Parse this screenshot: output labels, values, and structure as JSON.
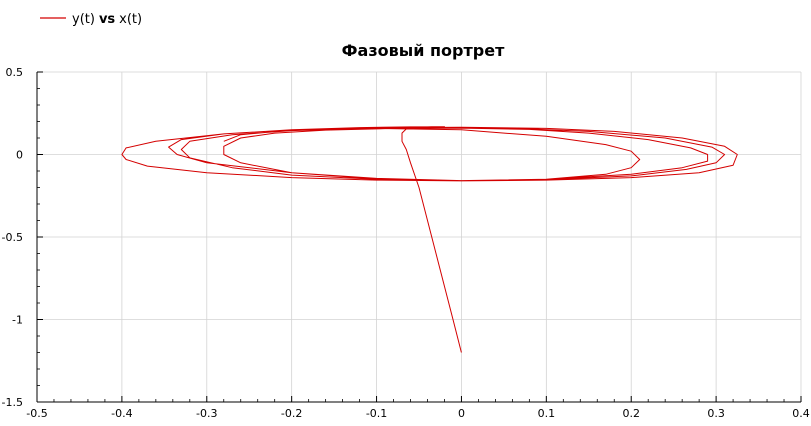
{
  "chart_data": {
    "type": "line",
    "title": "Фазовый портрет",
    "xlabel": "",
    "ylabel": "",
    "xlim": [
      -0.5,
      0.4
    ],
    "ylim": [
      -1.5,
      0.5
    ],
    "x_ticks": [
      -0.5,
      -0.4,
      -0.3,
      -0.2,
      -0.1,
      0,
      0.1,
      0.2,
      0.3,
      0.4
    ],
    "y_ticks": [
      -1.5,
      -1,
      -0.5,
      0,
      0.5
    ],
    "x_tick_labels": [
      "-0.5",
      "-0.4",
      "-0.3",
      "-0.2",
      "-0.1",
      "0",
      "0.1",
      "0.2",
      "0.3",
      "0.4"
    ],
    "y_tick_labels": [
      "-1.5",
      "-1",
      "-0.5",
      "0",
      "0.5"
    ],
    "grid": true,
    "legend_position": "top-left",
    "legend": {
      "y_part": "y(t)",
      "vs_part": "vs",
      "x_part": "x(t)"
    },
    "series": [
      {
        "color": "#d40000",
        "x": [
          0,
          -0.01,
          -0.02,
          -0.03,
          -0.04,
          -0.05,
          -0.06,
          -0.065,
          -0.07,
          -0.07,
          -0.065,
          -0.055,
          -0.035,
          -0.02,
          -0.06,
          -0.12,
          -0.2,
          -0.28,
          -0.36,
          -0.395,
          -0.4,
          -0.395,
          -0.37,
          -0.3,
          -0.2,
          -0.1,
          0,
          0.1,
          0.2,
          0.28,
          0.32,
          0.325,
          0.31,
          0.26,
          0.18,
          0.1,
          0,
          -0.1,
          -0.2,
          -0.28,
          -0.33,
          -0.345,
          -0.335,
          -0.3,
          -0.2,
          -0.1,
          0,
          0.1,
          0.2,
          0.265,
          0.3,
          0.31,
          0.295,
          0.24,
          0.15,
          0.06,
          -0.03,
          -0.12,
          -0.2,
          -0.27,
          -0.32,
          -0.33,
          -0.32,
          -0.27,
          -0.2,
          -0.1,
          0,
          0.1,
          0.2,
          0.26,
          0.29,
          0.29,
          0.27,
          0.22,
          0.15,
          0.08,
          0,
          -0.08,
          -0.16,
          -0.22,
          -0.26,
          -0.28,
          -0.28,
          -0.26,
          -0.2,
          -0.1,
          0,
          0.1,
          0.17,
          0.2,
          0.21,
          0.2,
          0.17,
          0.1,
          0,
          -0.1,
          -0.2,
          -0.26,
          -0.28
        ],
        "y": [
          -1.2,
          -1.0,
          -0.8,
          -0.6,
          -0.4,
          -0.2,
          -0.05,
          0.03,
          0.08,
          0.13,
          0.155,
          0.165,
          0.168,
          0.168,
          0.167,
          0.163,
          0.15,
          0.125,
          0.08,
          0.04,
          0.0,
          -0.03,
          -0.07,
          -0.11,
          -0.14,
          -0.155,
          -0.16,
          -0.155,
          -0.14,
          -0.11,
          -0.065,
          0.0,
          0.05,
          0.1,
          0.14,
          0.158,
          0.165,
          0.162,
          0.15,
          0.125,
          0.09,
          0.045,
          0.0,
          -0.05,
          -0.11,
          -0.145,
          -0.158,
          -0.152,
          -0.13,
          -0.09,
          -0.05,
          0.0,
          0.045,
          0.1,
          0.14,
          0.158,
          0.162,
          0.158,
          0.145,
          0.12,
          0.08,
          0.03,
          -0.02,
          -0.08,
          -0.125,
          -0.15,
          -0.158,
          -0.15,
          -0.12,
          -0.08,
          -0.04,
          0.0,
          0.04,
          0.09,
          0.13,
          0.152,
          0.16,
          0.158,
          0.148,
          0.13,
          0.1,
          0.05,
          0.0,
          -0.05,
          -0.11,
          -0.148,
          -0.158,
          -0.15,
          -0.12,
          -0.08,
          -0.03,
          0.02,
          0.06,
          0.11,
          0.15,
          0.158,
          0.148,
          0.12,
          0.08
        ]
      }
    ]
  }
}
